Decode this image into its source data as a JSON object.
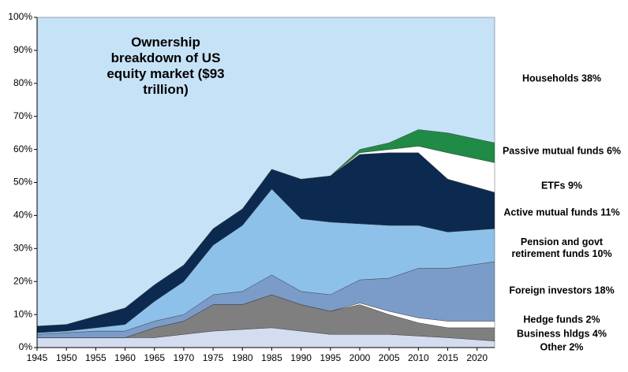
{
  "chart_data": {
    "type": "stacked_area",
    "title": "Ownership breakdown of US equity market ($93 trillion)",
    "x": [
      1945,
      1950,
      1955,
      1960,
      1965,
      1970,
      1975,
      1980,
      1985,
      1990,
      1995,
      2000,
      2005,
      2010,
      2015,
      2023
    ],
    "xlim": [
      1945,
      2023
    ],
    "xticks": [
      1945,
      1950,
      1955,
      1960,
      1965,
      1970,
      1975,
      1980,
      1985,
      1990,
      1995,
      2000,
      2005,
      2010,
      2015,
      2020
    ],
    "ylim": [
      0,
      100
    ],
    "yticks": [
      {
        "value": 0,
        "label": "0%"
      },
      {
        "value": 10,
        "label": "10%"
      },
      {
        "value": 20,
        "label": "20%"
      },
      {
        "value": 30,
        "label": "30%"
      },
      {
        "value": 40,
        "label": "40%"
      },
      {
        "value": 50,
        "label": "50%"
      },
      {
        "value": 60,
        "label": "60%"
      },
      {
        "value": 70,
        "label": "70%"
      },
      {
        "value": 80,
        "label": "80%"
      },
      {
        "value": 90,
        "label": "90%"
      },
      {
        "value": 100,
        "label": "100%"
      }
    ],
    "grid": false,
    "series": [
      {
        "name": "Other 2%",
        "color": "#d4dcef",
        "values": [
          3,
          3,
          3,
          3,
          3,
          4,
          5,
          5.5,
          6,
          5,
          4,
          4,
          4,
          3.5,
          3,
          2
        ]
      },
      {
        "name": "Business hldgs 4%",
        "color": "#7f7f7f",
        "values": [
          0,
          0,
          0,
          0,
          3,
          4,
          8,
          7.5,
          10,
          8,
          7,
          9,
          6,
          4,
          3,
          4
        ]
      },
      {
        "name": "Hedge funds 2%",
        "color": "#ffffff",
        "values": [
          0,
          0,
          0,
          0,
          0,
          0,
          0,
          0,
          0,
          0,
          0,
          0.5,
          1,
          1.5,
          2,
          2
        ]
      },
      {
        "name": "Foreign investors 18%",
        "color": "#7b9cc8",
        "values": [
          1,
          1.5,
          2,
          2,
          2,
          2,
          3,
          4,
          6,
          4,
          5,
          7,
          10,
          15,
          16,
          18
        ]
      },
      {
        "name": "Pension and govt retirement funds 10%",
        "color": "#8dc1ea",
        "values": [
          0.5,
          0.5,
          1,
          2,
          6,
          10,
          15,
          20,
          26,
          22,
          22,
          17,
          16,
          13,
          11,
          10
        ]
      },
      {
        "name": "Active mutual funds 11%",
        "color": "#0c2a50",
        "values": [
          2,
          2,
          3.5,
          5,
          5,
          5,
          5,
          5,
          6,
          12,
          14,
          21,
          22,
          22,
          16,
          11
        ]
      },
      {
        "name": "ETFs 9%",
        "color": "#ffffff",
        "values": [
          0,
          0,
          0,
          0,
          0,
          0,
          0,
          0,
          0,
          0,
          0,
          0.5,
          1,
          2,
          8,
          9
        ]
      },
      {
        "name": "Passive mutual funds 6%",
        "color": "#1f8b46",
        "values": [
          0,
          0,
          0,
          0,
          0,
          0,
          0,
          0,
          0,
          0,
          0,
          1,
          2,
          5,
          6,
          6
        ]
      },
      {
        "name": "Households 38%",
        "color": "#c6e2f7",
        "values": [
          93.5,
          93,
          90.5,
          88,
          81,
          75,
          64,
          58,
          46,
          49,
          48,
          40,
          38,
          34,
          35,
          38
        ]
      }
    ]
  }
}
